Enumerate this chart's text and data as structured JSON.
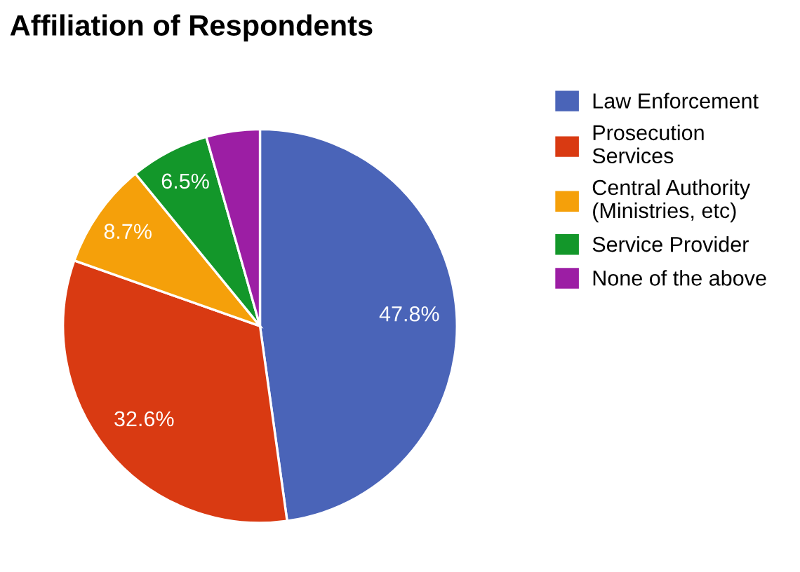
{
  "chart_data": {
    "type": "pie",
    "title": "Affiliation of Respondents",
    "categories": [
      "Law Enforcement",
      "Prosecution\nServices",
      "Central Authority\n(Ministries, etc)",
      "Service Provider",
      "None of the above"
    ],
    "values": [
      47.8,
      32.6,
      8.7,
      6.5,
      4.4
    ],
    "value_labels": [
      "47.8%",
      "32.6%",
      "8.7%",
      "6.5%",
      null
    ],
    "colors": [
      "#4a64b8",
      "#d93a12",
      "#f5a00a",
      "#13972a",
      "#9c1ea4"
    ],
    "legend": "right"
  }
}
